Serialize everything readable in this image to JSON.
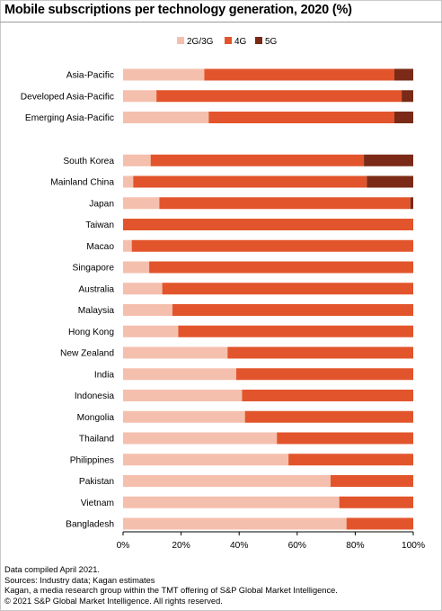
{
  "title": "Mobile subscriptions per technology generation, 2020 (%)",
  "footer": {
    "line1": "Data compiled April 2021.",
    "line2": "Sources: Industry data; Kagan estimates",
    "line3": "Kagan, a media research group within the TMT offering of S&P Global Market Intelligence.",
    "line4": "© 2021 S&P Global Market Intelligence. All rights reserved."
  },
  "chart_data": {
    "type": "bar",
    "orientation": "horizontal",
    "stacked": true,
    "legend_position": "top",
    "grid": false,
    "xlim": [
      0,
      100
    ],
    "x_ticks": [
      "0%",
      "20%",
      "40%",
      "60%",
      "80%",
      "100%"
    ],
    "colors": {
      "2G/3G": "#f5bfae",
      "4G": "#e2552c",
      "5G": "#7a2a16"
    },
    "groups": [
      [
        "Asia-Pacific",
        "Developed Asia-Pacific",
        "Emerging Asia-Pacific"
      ],
      [
        "South Korea",
        "Mainland China",
        "Japan",
        "Taiwan",
        "Macao",
        "Singapore",
        "Australia",
        "Malaysia",
        "Hong Kong",
        "New Zealand",
        "India",
        "Indonesia",
        "Mongolia",
        "Thailand",
        "Philippines",
        "Pakistan",
        "Vietnam",
        "Bangladesh"
      ]
    ],
    "categories": [
      "Asia-Pacific",
      "Developed Asia-Pacific",
      "Emerging Asia-Pacific",
      "South Korea",
      "Mainland China",
      "Japan",
      "Taiwan",
      "Macao",
      "Singapore",
      "Australia",
      "Malaysia",
      "Hong Kong",
      "New Zealand",
      "India",
      "Indonesia",
      "Mongolia",
      "Thailand",
      "Philippines",
      "Pakistan",
      "Vietnam",
      "Bangladesh"
    ],
    "series": [
      {
        "name": "2G/3G",
        "values": [
          28,
          11.5,
          29.5,
          9.5,
          3.5,
          12.5,
          0,
          3,
          9,
          13.5,
          17,
          19,
          36,
          39,
          41,
          42,
          53,
          57,
          71.5,
          74.5,
          77
        ]
      },
      {
        "name": "4G",
        "values": [
          65.5,
          84.5,
          64,
          73.5,
          80.5,
          86.5,
          100,
          97,
          91,
          86.5,
          83,
          81,
          64,
          61,
          59,
          58,
          47,
          43,
          28.5,
          25.5,
          23
        ]
      },
      {
        "name": "5G",
        "values": [
          6.5,
          4,
          6.5,
          17,
          16,
          1,
          0,
          0,
          0,
          0,
          0,
          0,
          0,
          0,
          0,
          0,
          0,
          0,
          0,
          0,
          0
        ]
      }
    ]
  }
}
